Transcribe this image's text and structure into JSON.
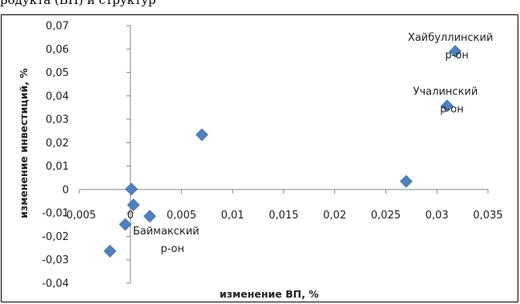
{
  "page_header": {
    "text": "родукта (ВП) и структур"
  },
  "chart_data": {
    "type": "scatter",
    "title": "",
    "xlabel": "изменение ВП, %",
    "ylabel": "изменение инвестиций, %",
    "xlim": [
      -0.005,
      0.035
    ],
    "ylim": [
      -0.04,
      0.07
    ],
    "x_ticks": [
      -0.005,
      0,
      0.005,
      0.01,
      0.015,
      0.02,
      0.025,
      0.03,
      0.035
    ],
    "x_tick_labels": [
      "-0,005",
      "0",
      "0,005",
      "0,01",
      "0,015",
      "0,02",
      "0,025",
      "0,03",
      "0,035"
    ],
    "y_ticks": [
      -0.04,
      -0.03,
      -0.02,
      -0.01,
      0,
      0.01,
      0.02,
      0.03,
      0.04,
      0.05,
      0.06,
      0.07
    ],
    "y_tick_labels": [
      "-0,04",
      "-0,03",
      "-0,02",
      "-0,01",
      "0",
      "0,01",
      "0,02",
      "0,03",
      "0,04",
      "0,05",
      "0,06",
      "0,07"
    ],
    "grid": false,
    "legend": "none",
    "marker": "diamond",
    "marker_color": "#4f81bd",
    "points": [
      {
        "x": 0.0318,
        "y": 0.059
      },
      {
        "x": 0.031,
        "y": 0.0357
      },
      {
        "x": 0.027,
        "y": 0.0035
      },
      {
        "x": 0.007,
        "y": 0.0234
      },
      {
        "x": 0.0001,
        "y": 0.0002
      },
      {
        "x": 0.0003,
        "y": -0.0066
      },
      {
        "x": 0.0019,
        "y": -0.0114
      },
      {
        "x": -0.0005,
        "y": -0.0149
      },
      {
        "x": -0.002,
        "y": -0.0263
      }
    ],
    "annotations": [
      {
        "point_index": 0,
        "lines": [
          "Хайбуллинский",
          "р-он"
        ]
      },
      {
        "point_index": 1,
        "lines": [
          "Учалинский",
          "р-он"
        ]
      },
      {
        "point_index": 8,
        "lines": [
          "Баймакский",
          "р-он"
        ]
      }
    ]
  }
}
